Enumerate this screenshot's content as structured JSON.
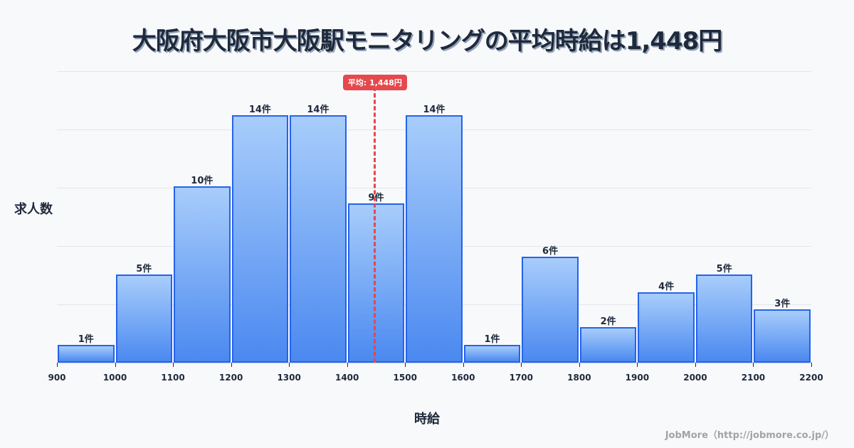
{
  "title": "大阪府大阪市大阪駅モニタリングの平均時給は1,448円",
  "y_axis_label": "求人数",
  "x_axis_label": "時給",
  "credit": "JobMore（http://jobmore.co.jp/）",
  "mean_badge": "平均: 1,448円",
  "colors": {
    "bar_border": "#2563eb",
    "bar_top": "#a8cdfb",
    "bar_bottom": "#4b89f0",
    "mean_line": "#e5484d",
    "title": "#1e293b",
    "background": "#f8f9fb"
  },
  "chart_data": {
    "type": "bar",
    "subtype": "histogram",
    "title": "大阪府大阪市大阪駅モニタリングの平均時給は1,448円",
    "xlabel": "時給",
    "ylabel": "求人数",
    "bins": [
      {
        "from": 900,
        "to": 1000,
        "count": 1,
        "label": "1件"
      },
      {
        "from": 1000,
        "to": 1100,
        "count": 5,
        "label": "5件"
      },
      {
        "from": 1100,
        "to": 1200,
        "count": 10,
        "label": "10件"
      },
      {
        "from": 1200,
        "to": 1300,
        "count": 14,
        "label": "14件"
      },
      {
        "from": 1300,
        "to": 1400,
        "count": 14,
        "label": "14件"
      },
      {
        "from": 1400,
        "to": 1500,
        "count": 9,
        "label": "9件"
      },
      {
        "from": 1500,
        "to": 1600,
        "count": 14,
        "label": "14件"
      },
      {
        "from": 1600,
        "to": 1700,
        "count": 1,
        "label": "1件"
      },
      {
        "from": 1700,
        "to": 1800,
        "count": 6,
        "label": "6件"
      },
      {
        "from": 1800,
        "to": 1900,
        "count": 2,
        "label": "2件"
      },
      {
        "from": 1900,
        "to": 2000,
        "count": 4,
        "label": "4件"
      },
      {
        "from": 2000,
        "to": 2100,
        "count": 5,
        "label": "5件"
      },
      {
        "from": 2100,
        "to": 2200,
        "count": 3,
        "label": "3件"
      }
    ],
    "categories": [
      "900-1000",
      "1000-1100",
      "1100-1200",
      "1200-1300",
      "1300-1400",
      "1400-1500",
      "1500-1600",
      "1600-1700",
      "1700-1800",
      "1800-1900",
      "1900-2000",
      "2000-2100",
      "2100-2200"
    ],
    "values": [
      1,
      5,
      10,
      14,
      14,
      9,
      14,
      1,
      6,
      2,
      4,
      5,
      3
    ],
    "x_ticks": [
      "900",
      "1000",
      "1100",
      "1200",
      "1300",
      "1400",
      "1500",
      "1600",
      "1700",
      "1800",
      "1900",
      "2000",
      "2100",
      "2200"
    ],
    "xlim": [
      900,
      2200
    ],
    "ylim": [
      0,
      16.5
    ],
    "mean": 1448,
    "mean_label": "平均: 1,448円",
    "grid": true,
    "legend": null
  }
}
